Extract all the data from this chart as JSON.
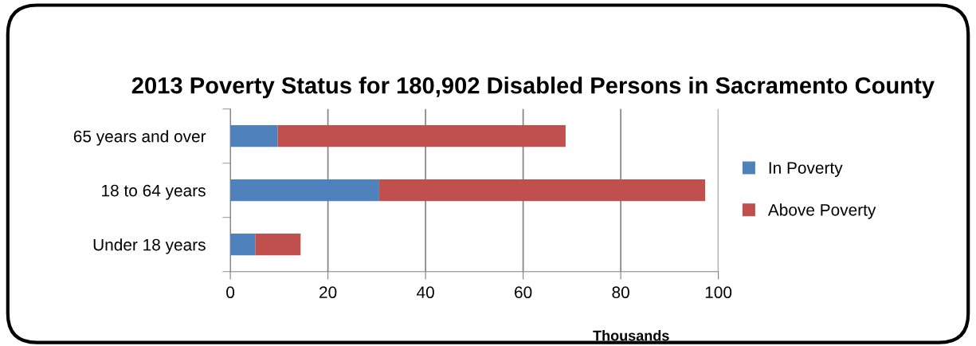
{
  "chart_data": {
    "type": "bar",
    "orientation": "horizontal",
    "stacked": true,
    "title": "2013 Poverty Status for 180,902 Disabled Persons in Sacramento County",
    "xlabel": "Thousands",
    "categories": [
      "65 years and over",
      "18 to 64 years",
      "Under 18 years"
    ],
    "series": [
      {
        "name": "In Poverty",
        "color": "#4f81bd",
        "values": [
          9.7,
          30.5,
          5.1
        ]
      },
      {
        "name": "Above Poverty",
        "color": "#c0504d",
        "values": [
          59.0,
          66.8,
          9.3
        ]
      }
    ],
    "xlim": [
      0,
      100
    ],
    "xticks": [
      0,
      20,
      40,
      60,
      80,
      100
    ],
    "grid": "x",
    "legend": "right"
  }
}
